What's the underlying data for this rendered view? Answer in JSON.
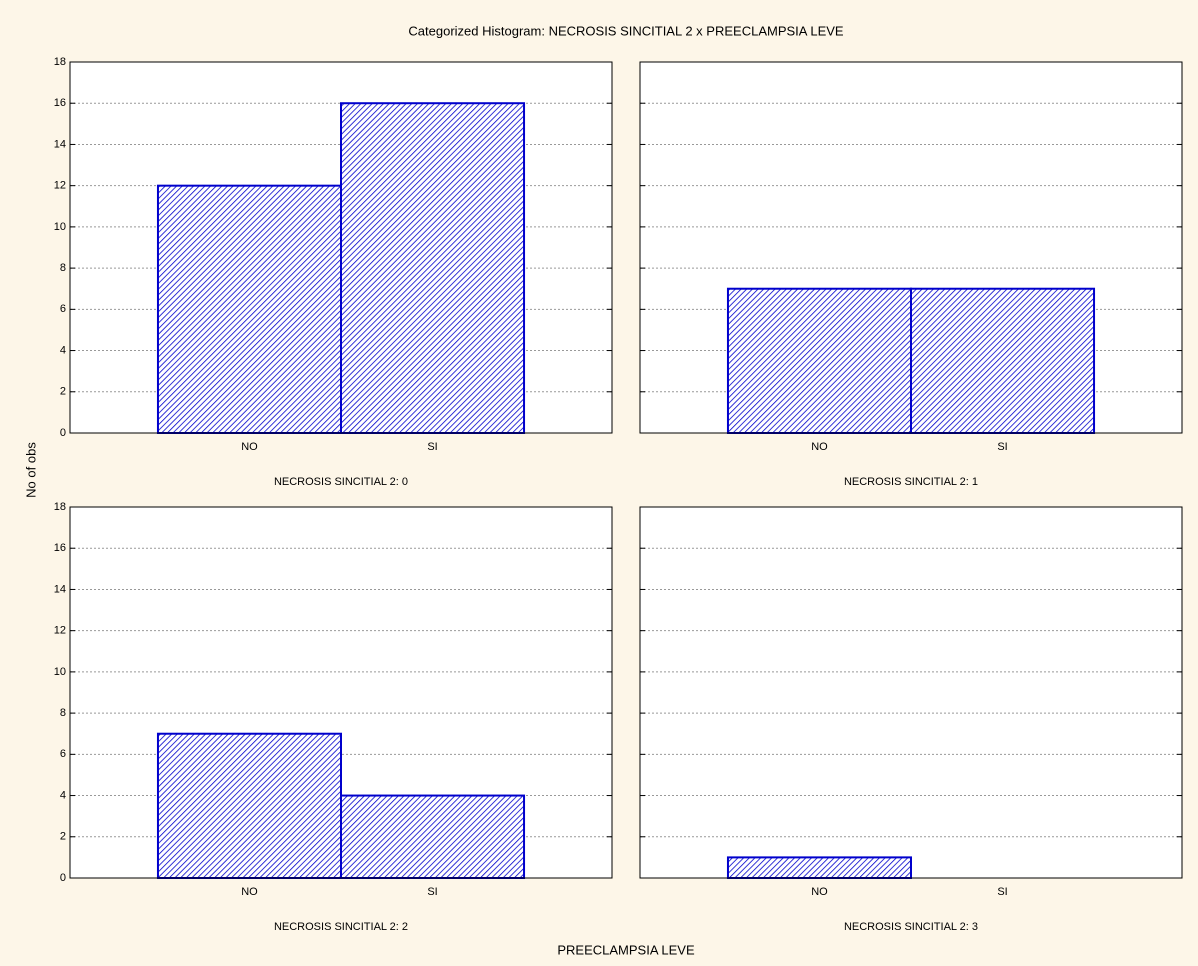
{
  "title": "Categorized Histogram: NECROSIS SINCITIAL 2 x PREECLAMPSIA LEVE",
  "y_label": "No of obs",
  "x_label": "PREECLAMPSIA LEVE",
  "chart_data": [
    {
      "type": "bar",
      "subtitle": "NECROSIS SINCITIAL 2: 0",
      "categories": [
        "NO",
        "SI"
      ],
      "values": [
        12,
        16
      ],
      "color": "#0000cc",
      "ylim": [
        0,
        18
      ],
      "yticks": [
        0,
        2,
        4,
        6,
        8,
        10,
        12,
        14,
        16,
        18
      ],
      "grid": true
    },
    {
      "type": "bar",
      "subtitle": "NECROSIS SINCITIAL 2: 1",
      "categories": [
        "NO",
        "SI"
      ],
      "values": [
        7,
        7
      ],
      "color": "#0000cc",
      "ylim": [
        0,
        18
      ],
      "yticks": [
        0,
        2,
        4,
        6,
        8,
        10,
        12,
        14,
        16,
        18
      ],
      "grid": true
    },
    {
      "type": "bar",
      "subtitle": "NECROSIS SINCITIAL 2: 2",
      "categories": [
        "NO",
        "SI"
      ],
      "values": [
        7,
        4
      ],
      "color": "#0000cc",
      "ylim": [
        0,
        18
      ],
      "yticks": [
        0,
        2,
        4,
        6,
        8,
        10,
        12,
        14,
        16,
        18
      ],
      "grid": true
    },
    {
      "type": "bar",
      "subtitle": "NECROSIS SINCITIAL 2: 3",
      "categories": [
        "NO",
        "SI"
      ],
      "values": [
        1,
        0
      ],
      "color": "#0000cc",
      "ylim": [
        0,
        18
      ],
      "yticks": [
        0,
        2,
        4,
        6,
        8,
        10,
        12,
        14,
        16,
        18
      ],
      "grid": true
    }
  ]
}
